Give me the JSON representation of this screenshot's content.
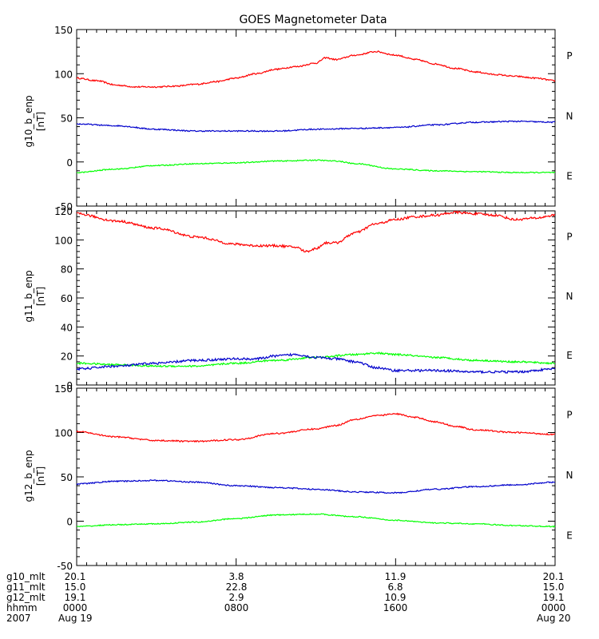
{
  "chart_data": {
    "type": "line",
    "title": "GOES Magnetometer Data",
    "x_start_hours": 0,
    "x_end_hours": 24,
    "x_minor_tick_minutes": 30,
    "x_major_ticks_hours": [
      0,
      8,
      16,
      24
    ],
    "colors": {
      "P": "#ff0000",
      "N": "#00ff00",
      "E": "#0000cc"
    },
    "panels": [
      {
        "ylabel": "g10_b_enp",
        "yunit": "[nT]",
        "ylim": [
          -50,
          150
        ],
        "yticks": [
          -50,
          0,
          50,
          100,
          150
        ],
        "legend": [
          "P",
          "N",
          "E"
        ],
        "series": [
          {
            "name": "P",
            "color": "#ff0000",
            "noise": 0.8,
            "points": [
              [
                0,
                95
              ],
              [
                1,
                92
              ],
              [
                2,
                87
              ],
              [
                3,
                85
              ],
              [
                4,
                85
              ],
              [
                5,
                86
              ],
              [
                6,
                88
              ],
              [
                7,
                91
              ],
              [
                8,
                95
              ],
              [
                9,
                100
              ],
              [
                10,
                105
              ],
              [
                11,
                108
              ],
              [
                12,
                112
              ],
              [
                12.5,
                118
              ],
              [
                13,
                116
              ],
              [
                14,
                121
              ],
              [
                15,
                125
              ],
              [
                16,
                121
              ],
              [
                17,
                116
              ],
              [
                18,
                111
              ],
              [
                19,
                106
              ],
              [
                20,
                102
              ],
              [
                21,
                99
              ],
              [
                22,
                97
              ],
              [
                23,
                95
              ],
              [
                24,
                92
              ]
            ]
          },
          {
            "name": "N",
            "color": "#0000cc",
            "noise": 0.7,
            "points": [
              [
                0,
                43
              ],
              [
                2,
                41
              ],
              [
                4,
                37
              ],
              [
                6,
                35
              ],
              [
                8,
                35
              ],
              [
                10,
                35
              ],
              [
                12,
                37
              ],
              [
                14,
                38
              ],
              [
                16,
                39
              ],
              [
                18,
                42
              ],
              [
                20,
                45
              ],
              [
                22,
                46
              ],
              [
                24,
                45
              ]
            ]
          },
          {
            "name": "E",
            "color": "#00ff00",
            "noise": 0.6,
            "points": [
              [
                0,
                -12
              ],
              [
                2,
                -8
              ],
              [
                4,
                -4
              ],
              [
                6,
                -2
              ],
              [
                8,
                -1
              ],
              [
                10,
                1
              ],
              [
                12,
                2
              ],
              [
                13,
                1
              ],
              [
                14,
                -2
              ],
              [
                16,
                -8
              ],
              [
                18,
                -10
              ],
              [
                20,
                -11
              ],
              [
                22,
                -12
              ],
              [
                24,
                -12
              ]
            ]
          }
        ]
      },
      {
        "ylabel": "g11_b_enp",
        "yunit": "[nT]",
        "ylim": [
          0,
          120
        ],
        "yticks": [
          0,
          20,
          40,
          60,
          80,
          100,
          120
        ],
        "legend": [
          "P",
          "N",
          "E"
        ],
        "series": [
          {
            "name": "P",
            "color": "#ff0000",
            "noise": 0.8,
            "points": [
              [
                0,
                118
              ],
              [
                2,
                113
              ],
              [
                4,
                108
              ],
              [
                6,
                102
              ],
              [
                8,
                97
              ],
              [
                9,
                96
              ],
              [
                10,
                96
              ],
              [
                11,
                95
              ],
              [
                11.5,
                92
              ],
              [
                12,
                94
              ],
              [
                12.5,
                98
              ],
              [
                13,
                98
              ],
              [
                14,
                105
              ],
              [
                15,
                111
              ],
              [
                16,
                114
              ],
              [
                17,
                116
              ],
              [
                18,
                117
              ],
              [
                19,
                119
              ],
              [
                20,
                118
              ],
              [
                21,
                117
              ],
              [
                22,
                114
              ],
              [
                23,
                115
              ],
              [
                24,
                117
              ]
            ]
          },
          {
            "name": "N",
            "color": "#00ff00",
            "noise": 0.6,
            "points": [
              [
                0,
                15
              ],
              [
                2,
                14
              ],
              [
                4,
                13
              ],
              [
                6,
                13
              ],
              [
                8,
                15
              ],
              [
                10,
                17
              ],
              [
                12,
                19
              ],
              [
                14,
                21
              ],
              [
                15,
                22
              ],
              [
                16,
                21
              ],
              [
                18,
                19
              ],
              [
                20,
                17
              ],
              [
                22,
                16
              ],
              [
                24,
                15
              ]
            ]
          },
          {
            "name": "E",
            "color": "#0000cc",
            "noise": 0.8,
            "points": [
              [
                0,
                11
              ],
              [
                2,
                13
              ],
              [
                4,
                15
              ],
              [
                6,
                17
              ],
              [
                8,
                18
              ],
              [
                9,
                18
              ],
              [
                10,
                20
              ],
              [
                11,
                21
              ],
              [
                12,
                19
              ],
              [
                13,
                18
              ],
              [
                14,
                16
              ],
              [
                15,
                12
              ],
              [
                16,
                10
              ],
              [
                18,
                10
              ],
              [
                20,
                9
              ],
              [
                22,
                9
              ],
              [
                24,
                11
              ]
            ]
          }
        ]
      },
      {
        "ylabel": "g12_b_enp",
        "yunit": "[nT]",
        "ylim": [
          -50,
          150
        ],
        "yticks": [
          -50,
          0,
          50,
          100,
          150
        ],
        "legend": [
          "P",
          "N",
          "E"
        ],
        "series": [
          {
            "name": "P",
            "color": "#ff0000",
            "noise": 0.8,
            "points": [
              [
                0,
                101
              ],
              [
                2,
                95
              ],
              [
                4,
                91
              ],
              [
                6,
                90
              ],
              [
                8,
                92
              ],
              [
                10,
                99
              ],
              [
                12,
                104
              ],
              [
                13,
                108
              ],
              [
                14,
                115
              ],
              [
                15,
                119
              ],
              [
                16,
                121
              ],
              [
                17,
                117
              ],
              [
                18,
                112
              ],
              [
                19,
                107
              ],
              [
                20,
                103
              ],
              [
                22,
                100
              ],
              [
                24,
                98
              ]
            ]
          },
          {
            "name": "N",
            "color": "#0000cc",
            "noise": 0.7,
            "points": [
              [
                0,
                42
              ],
              [
                2,
                45
              ],
              [
                4,
                46
              ],
              [
                6,
                44
              ],
              [
                8,
                40
              ],
              [
                10,
                38
              ],
              [
                12,
                36
              ],
              [
                14,
                33
              ],
              [
                16,
                32
              ],
              [
                18,
                36
              ],
              [
                20,
                39
              ],
              [
                22,
                41
              ],
              [
                24,
                44
              ]
            ]
          },
          {
            "name": "E",
            "color": "#00ff00",
            "noise": 0.6,
            "points": [
              [
                0,
                -6
              ],
              [
                2,
                -4
              ],
              [
                4,
                -3
              ],
              [
                6,
                -1
              ],
              [
                8,
                3
              ],
              [
                10,
                7
              ],
              [
                12,
                8
              ],
              [
                14,
                5
              ],
              [
                16,
                1
              ],
              [
                18,
                -2
              ],
              [
                20,
                -3
              ],
              [
                22,
                -5
              ],
              [
                24,
                -6
              ]
            ]
          }
        ]
      }
    ]
  },
  "footer": {
    "rows": [
      {
        "name": "g10_mlt",
        "values": [
          "20.1",
          "3.8",
          "11.9",
          "20.1"
        ]
      },
      {
        "name": "g11_mlt",
        "values": [
          "15.0",
          "22.8",
          "6.8",
          "15.0"
        ]
      },
      {
        "name": "g12_mlt",
        "values": [
          "19.1",
          "2.9",
          "10.9",
          "19.1"
        ]
      },
      {
        "name": "hhmm",
        "values": [
          "0000",
          "0800",
          "1600",
          "0000"
        ]
      }
    ],
    "year": "2007",
    "start_date": "Aug 19",
    "end_date": "Aug 20"
  }
}
